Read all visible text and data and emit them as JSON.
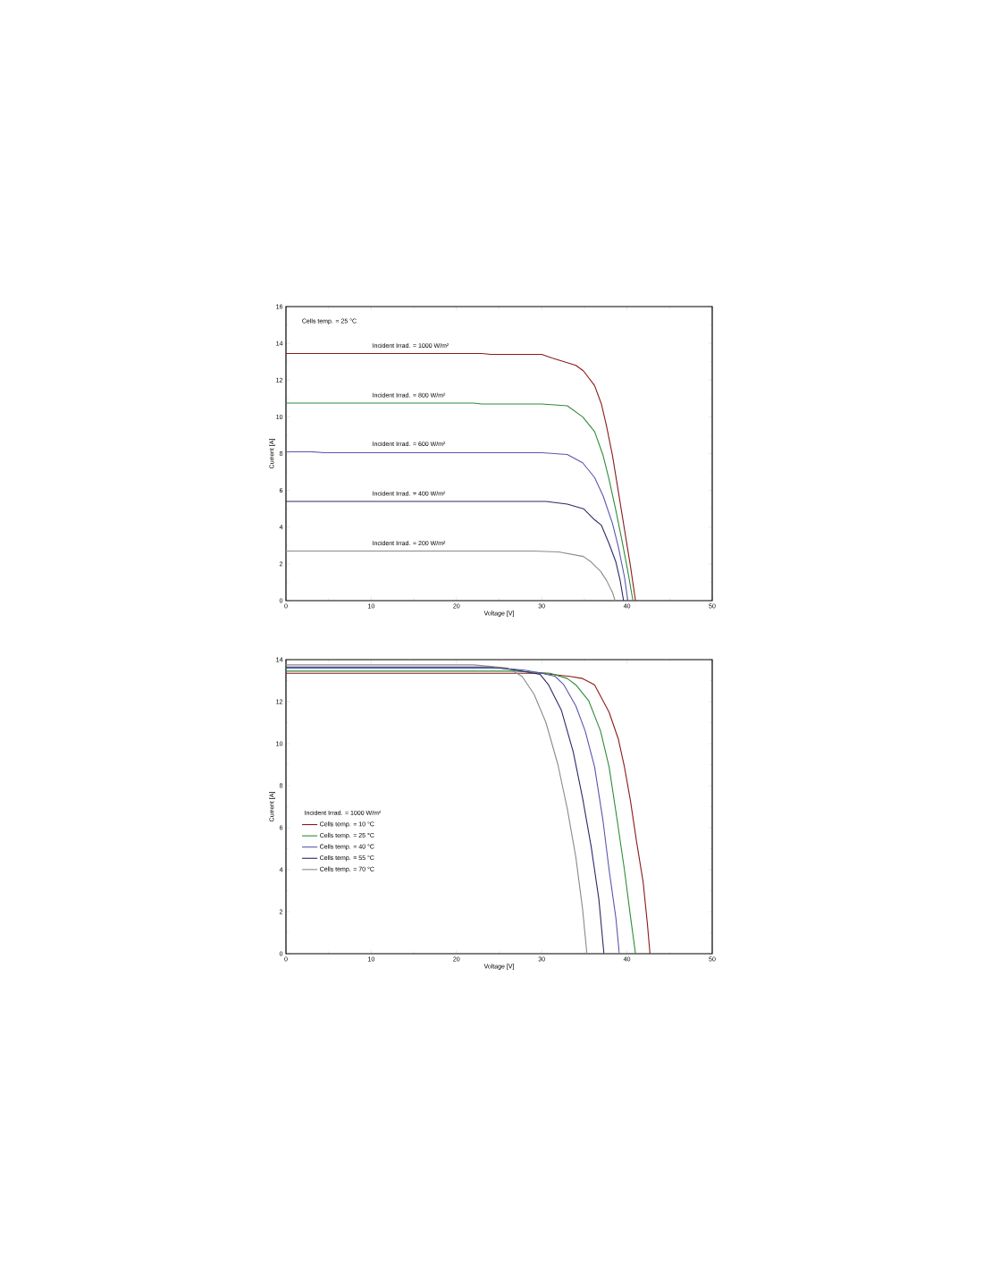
{
  "chart_data": [
    {
      "type": "line",
      "xlabel": "Voltage [V]",
      "ylabel": "Current [A]",
      "xlim": [
        0,
        50
      ],
      "ylim": [
        0,
        16
      ],
      "xticks": [
        0,
        10,
        20,
        30,
        40,
        50
      ],
      "yticks": [
        0,
        2,
        4,
        6,
        8,
        10,
        12,
        14,
        16
      ],
      "annotations": [
        "Cells temp. = 25 °C"
      ],
      "series": [
        {
          "name": "Incident Irrad. = 1000 W/m²",
          "color": "#8b1a1a",
          "x": [
            0,
            23,
            24,
            30,
            31.2,
            34.0,
            34.9,
            36.2,
            37.0,
            37.6,
            38.3,
            39.0,
            39.7,
            40.4,
            41.0
          ],
          "values": [
            13.45,
            13.45,
            13.4,
            13.4,
            13.2,
            12.8,
            12.5,
            11.7,
            10.7,
            9.5,
            7.9,
            5.9,
            3.9,
            1.9,
            0
          ]
        },
        {
          "name": "Incident Irrad. = 800 W/m²",
          "color": "#2e8b3a",
          "x": [
            0,
            22,
            23,
            30,
            33.0,
            34.8,
            36.2,
            37.2,
            37.9,
            38.7,
            39.4,
            40.1,
            40.7
          ],
          "values": [
            10.75,
            10.75,
            10.7,
            10.7,
            10.6,
            10.0,
            9.2,
            7.9,
            6.6,
            4.9,
            3.3,
            1.6,
            0
          ]
        },
        {
          "name": "Incident Irrad. = 600 W/m²",
          "color": "#5a55b0",
          "x": [
            0,
            3,
            4.5,
            30,
            33.0,
            34.8,
            36.2,
            37.2,
            38.3,
            39.0,
            39.7,
            40.1
          ],
          "values": [
            8.1,
            8.1,
            8.05,
            8.05,
            7.95,
            7.5,
            6.7,
            5.7,
            4.2,
            2.9,
            1.3,
            0
          ]
        },
        {
          "name": "Incident Irrad. = 400 W/m²",
          "color": "#2a2a6a",
          "x": [
            0,
            30.5,
            33.0,
            34.9,
            36.2,
            37.0,
            37.9,
            38.7,
            39.2,
            39.6
          ],
          "values": [
            5.4,
            5.4,
            5.25,
            5.0,
            4.4,
            4.1,
            3.1,
            2.1,
            1.1,
            0
          ]
        },
        {
          "name": "Incident Irrad. = 200 W/m²",
          "color": "#8a8a8a",
          "x": [
            0,
            29,
            32,
            34.9,
            35.8,
            36.9,
            37.6,
            38.3,
            38.6
          ],
          "values": [
            2.7,
            2.7,
            2.65,
            2.4,
            2.1,
            1.6,
            1.1,
            0.45,
            0
          ]
        }
      ]
    },
    {
      "type": "line",
      "xlabel": "Voltage [V]",
      "ylabel": "Current [A]",
      "xlim": [
        0,
        50
      ],
      "ylim": [
        0,
        14
      ],
      "xticks": [
        0,
        10,
        20,
        30,
        40,
        50
      ],
      "yticks": [
        0,
        2,
        4,
        6,
        8,
        10,
        12,
        14
      ],
      "legend": "left",
      "legend_title": "Incident Irrad. = 1000 W/m²",
      "series": [
        {
          "name": "Cells temp. = 10 °C",
          "color": "#8b1a1a",
          "x": [
            0,
            30,
            33.3,
            34.8,
            36.2,
            37.9,
            39.0,
            39.7,
            40.4,
            41.1,
            41.9,
            42.4,
            42.7
          ],
          "values": [
            13.35,
            13.35,
            13.2,
            13.1,
            12.8,
            11.5,
            10.2,
            8.9,
            7.3,
            5.4,
            3.4,
            1.4,
            0
          ]
        },
        {
          "name": "Cells temp. = 25 °C",
          "color": "#2e8b3a",
          "x": [
            0,
            27,
            31,
            33.0,
            34.0,
            35.5,
            36.9,
            37.9,
            38.8,
            39.7,
            40.4,
            41.0
          ],
          "values": [
            13.45,
            13.45,
            13.35,
            13.1,
            12.8,
            12.05,
            10.6,
            8.9,
            6.5,
            4.0,
            1.8,
            0
          ]
        },
        {
          "name": "Cells temp. = 40 °C",
          "color": "#5a55b0",
          "x": [
            0,
            25,
            28,
            30,
            31.6,
            32.6,
            34.0,
            35.1,
            36.2,
            37.2,
            37.9,
            38.7,
            39.1
          ],
          "values": [
            13.6,
            13.6,
            13.5,
            13.35,
            13.2,
            12.8,
            11.8,
            10.6,
            8.9,
            6.3,
            4.0,
            1.7,
            0
          ]
        },
        {
          "name": "Cells temp. = 55 °C",
          "color": "#2a2a6a",
          "x": [
            0,
            24,
            27,
            29.8,
            30.8,
            32.3,
            33.7,
            34.8,
            35.8,
            36.7,
            37.3
          ],
          "values": [
            13.65,
            13.65,
            13.5,
            13.3,
            12.8,
            11.6,
            9.6,
            7.4,
            5.1,
            2.6,
            0
          ]
        },
        {
          "name": "Cells temp. = 70 °C",
          "color": "#8a8a8a",
          "x": [
            0,
            22,
            26,
            27.7,
            29.1,
            30.5,
            31.9,
            33.0,
            34.0,
            34.8,
            35.3
          ],
          "values": [
            13.75,
            13.75,
            13.6,
            13.2,
            12.35,
            11.0,
            9.0,
            6.9,
            4.6,
            2.1,
            0
          ]
        }
      ]
    }
  ]
}
